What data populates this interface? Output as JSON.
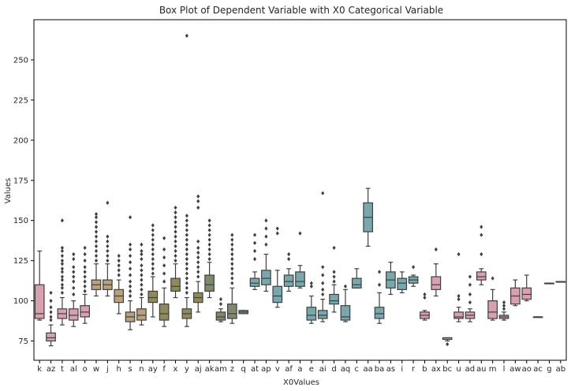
{
  "chart_data": {
    "type": "box",
    "title": "Box Plot of Dependent Variable with X0 Categorical Variable",
    "xlabel": "X0Values",
    "ylabel": "Values",
    "ylim": [
      63,
      275
    ],
    "yticks": [
      75,
      100,
      125,
      150,
      175,
      200,
      225,
      250
    ],
    "grid": false,
    "categories": [
      "k",
      "az",
      "t",
      "al",
      "o",
      "w",
      "j",
      "h",
      "s",
      "n",
      "ay",
      "f",
      "x",
      "y",
      "aj",
      "ak",
      "am",
      "z",
      "q",
      "at",
      "ap",
      "v",
      "af",
      "a",
      "e",
      "ai",
      "d",
      "aq",
      "c",
      "aa",
      "ba",
      "as",
      "i",
      "r",
      "b",
      "ax",
      "bc",
      "u",
      "ad",
      "au",
      "m",
      "l",
      "aw",
      "ao",
      "ac",
      "g",
      "ab"
    ],
    "boxes": [
      {
        "cat": "k",
        "color": "#d7a1b0",
        "whislo": 88,
        "q1": 89,
        "med": 92,
        "q3": 110,
        "whishi": 131,
        "fliers": []
      },
      {
        "cat": "az",
        "color": "#d7a1b0",
        "whislo": 72,
        "q1": 75,
        "med": 77,
        "q3": 80,
        "whishi": 85,
        "fliers": [
          88,
          90,
          93,
          96,
          100,
          105
        ]
      },
      {
        "cat": "t",
        "color": "#d7a1b0",
        "whislo": 85,
        "q1": 89,
        "med": 92,
        "q3": 95,
        "whishi": 102,
        "fliers": [
          105,
          108,
          110,
          113,
          115,
          118,
          120,
          123,
          125,
          128,
          131,
          133,
          150
        ]
      },
      {
        "cat": "al",
        "color": "#d7a1b0",
        "whislo": 84,
        "q1": 88,
        "med": 91,
        "q3": 95,
        "whishi": 100,
        "fliers": [
          104,
          108,
          112,
          115,
          118,
          121,
          126,
          129
        ]
      },
      {
        "cat": "o",
        "color": "#d7a1b0",
        "whislo": 86,
        "q1": 90,
        "med": 93,
        "q3": 97,
        "whishi": 104,
        "fliers": [
          106,
          109,
          112,
          115,
          118,
          121,
          125,
          129,
          133
        ]
      },
      {
        "cat": "w",
        "color": "#b9a07e",
        "whislo": 103,
        "q1": 107,
        "med": 110,
        "q3": 113,
        "whishi": 123,
        "fliers": [
          125,
          128,
          131,
          134,
          137,
          140,
          143,
          146,
          149,
          152,
          154
        ]
      },
      {
        "cat": "j",
        "color": "#b9a07e",
        "whislo": 103,
        "q1": 107,
        "med": 110,
        "q3": 113,
        "whishi": 123,
        "fliers": [
          125,
          128,
          131,
          134,
          137,
          140,
          161
        ]
      },
      {
        "cat": "h",
        "color": "#b9a07e",
        "whislo": 92,
        "q1": 99,
        "med": 103,
        "q3": 107,
        "whishi": 113,
        "fliers": [
          116,
          119,
          122,
          125,
          128
        ]
      },
      {
        "cat": "s",
        "color": "#b9a07e",
        "whislo": 82,
        "q1": 87,
        "med": 90,
        "q3": 93,
        "whishi": 100,
        "fliers": [
          103,
          106,
          109,
          112,
          116,
          120,
          124,
          128,
          132,
          135,
          152
        ]
      },
      {
        "cat": "n",
        "color": "#b9a07e",
        "whislo": 85,
        "q1": 88,
        "med": 91,
        "q3": 95,
        "whishi": 102,
        "fliers": [
          104,
          107,
          110,
          113,
          116,
          119,
          122,
          126,
          129,
          131,
          135
        ]
      },
      {
        "cat": "ay",
        "color": "#8f8a5e",
        "whislo": 90,
        "q1": 99,
        "med": 102,
        "q3": 106,
        "whishi": 115,
        "fliers": [
          117,
          120,
          123,
          126,
          129,
          132,
          135,
          138,
          141,
          144,
          147
        ]
      },
      {
        "cat": "f",
        "color": "#8f8a5e",
        "whislo": 84,
        "q1": 88,
        "med": 92,
        "q3": 98,
        "whishi": 108,
        "fliers": [
          112,
          117,
          122,
          127,
          132,
          139
        ]
      },
      {
        "cat": "x",
        "color": "#8f8a5e",
        "whislo": 102,
        "q1": 106,
        "med": 109,
        "q3": 114,
        "whishi": 123,
        "fliers": [
          125,
          128,
          131,
          134,
          137,
          140,
          143,
          146,
          149,
          152,
          155,
          158
        ]
      },
      {
        "cat": "y",
        "color": "#8f8a5e",
        "whislo": 84,
        "q1": 89,
        "med": 92,
        "q3": 95,
        "whishi": 102,
        "fliers": [
          105,
          108,
          111,
          114,
          117,
          120,
          123,
          126,
          129,
          132,
          135,
          138,
          141,
          144,
          147,
          150,
          153,
          265
        ]
      },
      {
        "cat": "aj",
        "color": "#8f8a5e",
        "whislo": 93,
        "q1": 99,
        "med": 102,
        "q3": 105,
        "whishi": 112,
        "fliers": [
          115,
          118,
          121,
          124,
          127,
          130,
          133,
          137,
          158,
          162,
          165
        ]
      },
      {
        "cat": "ak",
        "color": "#7e8a6a",
        "whislo": 102,
        "q1": 106,
        "med": 110,
        "q3": 116,
        "whishi": 124,
        "fliers": [
          126,
          129,
          132,
          135,
          138,
          141,
          144,
          147,
          150
        ]
      },
      {
        "cat": "am",
        "color": "#7e8a6a",
        "whislo": 87,
        "q1": 88,
        "med": 90,
        "q3": 93,
        "whishi": 95,
        "fliers": [
          98,
          101
        ]
      },
      {
        "cat": "z",
        "color": "#7e8a6a",
        "whislo": 86,
        "q1": 89,
        "med": 92,
        "q3": 98,
        "whishi": 108,
        "fliers": [
          111,
          114,
          117,
          120,
          123,
          126,
          129,
          132,
          135,
          138,
          141
        ]
      },
      {
        "cat": "q",
        "color": "#7e9a8a",
        "whislo": 92,
        "q1": 92,
        "med": 93,
        "q3": 94,
        "whishi": 94,
        "fliers": []
      },
      {
        "cat": "at",
        "color": "#7aa7ac",
        "whislo": 107,
        "q1": 109,
        "med": 111,
        "q3": 114,
        "whishi": 118,
        "fliers": [
          126,
          131,
          136,
          141
        ]
      },
      {
        "cat": "ap",
        "color": "#7aa7ac",
        "whislo": 106,
        "q1": 110,
        "med": 114,
        "q3": 119,
        "whishi": 129,
        "fliers": [
          135,
          140,
          145,
          150
        ]
      },
      {
        "cat": "v",
        "color": "#7aa7ac",
        "whislo": 96,
        "q1": 99,
        "med": 103,
        "q3": 109,
        "whishi": 119,
        "fliers": [
          142,
          145
        ]
      },
      {
        "cat": "af",
        "color": "#7aa7ac",
        "whislo": 106,
        "q1": 109,
        "med": 112,
        "q3": 116,
        "whishi": 120,
        "fliers": [
          126,
          129
        ]
      },
      {
        "cat": "a",
        "color": "#7aa7ac",
        "whislo": 108,
        "q1": 109,
        "med": 112,
        "q3": 118,
        "whishi": 122,
        "fliers": [
          142
        ]
      },
      {
        "cat": "e",
        "color": "#7aa7ac",
        "whislo": 86,
        "q1": 88,
        "med": 91,
        "q3": 96,
        "whishi": 103,
        "fliers": [
          109,
          111
        ]
      },
      {
        "cat": "ai",
        "color": "#7aa7ac",
        "whislo": 87,
        "q1": 89,
        "med": 91,
        "q3": 94,
        "whishi": 101,
        "fliers": [
          104,
          107,
          111,
          116,
          121,
          167
        ]
      },
      {
        "cat": "d",
        "color": "#7aa7ac",
        "whislo": 93,
        "q1": 98,
        "med": 100,
        "q3": 104,
        "whishi": 110,
        "fliers": [
          112,
          115,
          118,
          133
        ]
      },
      {
        "cat": "aq",
        "color": "#7aa7ac",
        "whislo": 87,
        "q1": 88,
        "med": 90,
        "q3": 97,
        "whishi": 107,
        "fliers": [
          109
        ]
      },
      {
        "cat": "c",
        "color": "#7aa7ac",
        "whislo": 108,
        "q1": 108,
        "med": 110,
        "q3": 114,
        "whishi": 120,
        "fliers": []
      },
      {
        "cat": "aa",
        "color": "#7aa7ac",
        "whislo": 134,
        "q1": 143,
        "med": 152,
        "q3": 161,
        "whishi": 170,
        "fliers": []
      },
      {
        "cat": "ba",
        "color": "#7aa7ac",
        "whislo": 86,
        "q1": 89,
        "med": 92,
        "q3": 96,
        "whishi": 105,
        "fliers": [
          110,
          118
        ]
      },
      {
        "cat": "as",
        "color": "#7aa7ac",
        "whislo": 104,
        "q1": 108,
        "med": 113,
        "q3": 118,
        "whishi": 124,
        "fliers": []
      },
      {
        "cat": "i",
        "color": "#7aa7ac",
        "whislo": 105,
        "q1": 107,
        "med": 111,
        "q3": 114,
        "whishi": 118,
        "fliers": []
      },
      {
        "cat": "r",
        "color": "#7aa7ac",
        "whislo": 109,
        "q1": 111,
        "med": 113,
        "q3": 115,
        "whishi": 116,
        "fliers": [
          121
        ]
      },
      {
        "cat": "b",
        "color": "#d7a1b0",
        "whislo": 88,
        "q1": 89,
        "med": 91,
        "q3": 93,
        "whishi": 94,
        "fliers": [
          102,
          104
        ]
      },
      {
        "cat": "ax",
        "color": "#d7a1b0",
        "whislo": 103,
        "q1": 107,
        "med": 110,
        "q3": 115,
        "whishi": 123,
        "fliers": [
          132
        ]
      },
      {
        "cat": "bc",
        "color": "#d7a1b0",
        "whislo": 75,
        "q1": 76,
        "med": 76,
        "q3": 77,
        "whishi": 77,
        "fliers": [
          73
        ]
      },
      {
        "cat": "u",
        "color": "#d7a1b0",
        "whislo": 87,
        "q1": 89,
        "med": 90,
        "q3": 93,
        "whishi": 96,
        "fliers": [
          101,
          103,
          129
        ]
      },
      {
        "cat": "ad",
        "color": "#d7a1b0",
        "whislo": 87,
        "q1": 89,
        "med": 91,
        "q3": 93,
        "whishi": 95,
        "fliers": [
          99,
          104,
          110,
          115
        ]
      },
      {
        "cat": "au",
        "color": "#d7a1b0",
        "whislo": 110,
        "q1": 113,
        "med": 115,
        "q3": 118,
        "whishi": 120,
        "fliers": [
          129,
          141,
          146
        ]
      },
      {
        "cat": "m",
        "color": "#d7a1b0",
        "whislo": 88,
        "q1": 89,
        "med": 93,
        "q3": 100,
        "whishi": 107,
        "fliers": [
          114
        ]
      },
      {
        "cat": "l",
        "color": "#d7a1b0",
        "whislo": 88,
        "q1": 89,
        "med": 90,
        "q3": 91,
        "whishi": 93,
        "fliers": [
          95,
          97,
          99
        ]
      },
      {
        "cat": "aw",
        "color": "#d7a1b0",
        "whislo": 97,
        "q1": 98,
        "med": 103,
        "q3": 108,
        "whishi": 113,
        "fliers": []
      },
      {
        "cat": "ao",
        "color": "#d7a1b0",
        "whislo": 100,
        "q1": 101,
        "med": 104,
        "q3": 108,
        "whishi": 116,
        "fliers": []
      },
      {
        "cat": "ac",
        "color": "#d7a1b0",
        "whislo": 90,
        "q1": 90,
        "med": 90,
        "q3": 90,
        "whishi": 90,
        "fliers": []
      },
      {
        "cat": "g",
        "color": "#d7a1b0",
        "whislo": 111,
        "q1": 111,
        "med": 111,
        "q3": 111,
        "whishi": 111,
        "fliers": []
      },
      {
        "cat": "ab",
        "color": "#d7a1b0",
        "whislo": 112,
        "q1": 112,
        "med": 112,
        "q3": 112,
        "whishi": 112,
        "fliers": []
      }
    ]
  }
}
